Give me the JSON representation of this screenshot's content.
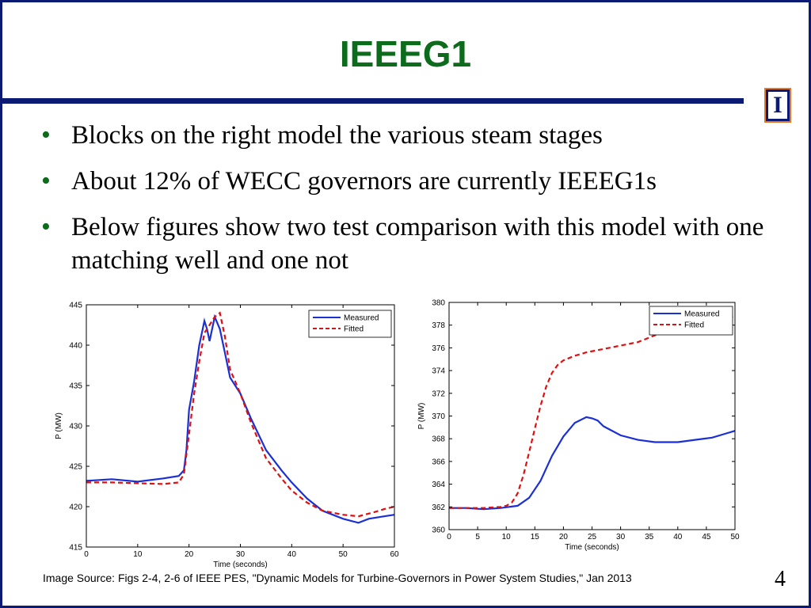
{
  "slide": {
    "title": "IEEEG1",
    "bullets": [
      "Blocks on the right model the various steam stages",
      "About 12% of WECC governors are currently IEEEG1s",
      "Below figures show two test comparison with this model with one matching well and one not"
    ],
    "bullet_glyph": "•",
    "source": "Image Source: Figs 2-4, 2-6 of  IEEE PES, \"Dynamic Models for Turbine-Governors in Power System Studies,\" Jan 2013",
    "page_number": "4",
    "logo_letter": "I"
  },
  "colors": {
    "title": "#0d6b1c",
    "rule": "#0b1a73",
    "measured": "#1a2fd6",
    "fitted": "#e01010",
    "logo_orange": "#e87722"
  },
  "chart_data": [
    {
      "type": "line",
      "title": "",
      "xlabel": "Time (seconds)",
      "ylabel": "P (MW)",
      "xlim": [
        0,
        60
      ],
      "ylim": [
        415,
        445
      ],
      "xticks": [
        0,
        10,
        20,
        30,
        40,
        50,
        60
      ],
      "yticks": [
        415,
        420,
        425,
        430,
        435,
        440,
        445
      ],
      "legend": "top-right",
      "grid": false,
      "series": [
        {
          "name": "Measured",
          "x": [
            0,
            5,
            10,
            15,
            18,
            19,
            19.5,
            20,
            21,
            22,
            23,
            23.5,
            24,
            25,
            26,
            27,
            28,
            30,
            32,
            35,
            38,
            40,
            43,
            46,
            50,
            53,
            55,
            58,
            60
          ],
          "y": [
            423.2,
            423.4,
            423.1,
            423.5,
            423.8,
            424.5,
            427,
            432,
            435.5,
            440,
            443,
            442,
            440.5,
            443.5,
            442,
            439,
            436,
            434,
            431,
            427,
            424.5,
            423,
            421,
            419.5,
            418.5,
            418,
            418.5,
            418.8,
            419
          ]
        },
        {
          "name": "Fitted",
          "x": [
            0,
            5,
            10,
            15,
            18,
            19,
            20,
            21,
            22,
            23,
            24,
            25,
            26,
            27,
            28,
            30,
            32,
            35,
            38,
            40,
            43,
            46,
            50,
            53,
            56,
            58,
            60
          ],
          "y": [
            423,
            423,
            422.9,
            422.8,
            423,
            424,
            429,
            434,
            438,
            441.5,
            442.5,
            443.5,
            444,
            441,
            437,
            434,
            430.5,
            426,
            423.5,
            422,
            420.5,
            419.5,
            419,
            418.8,
            419.3,
            419.7,
            420
          ]
        }
      ]
    },
    {
      "type": "line",
      "title": "",
      "xlabel": "Time (seconds)",
      "ylabel": "P (MW)",
      "xlim": [
        0,
        50
      ],
      "ylim": [
        360,
        380
      ],
      "xticks": [
        0,
        5,
        10,
        15,
        20,
        25,
        30,
        35,
        40,
        45,
        50
      ],
      "yticks": [
        360,
        362,
        364,
        366,
        368,
        370,
        372,
        374,
        376,
        378,
        380
      ],
      "legend": "top-right",
      "grid": false,
      "series": [
        {
          "name": "Measured",
          "x": [
            0,
            3,
            6,
            9,
            12,
            14,
            16,
            18,
            20,
            22,
            24,
            25,
            26,
            27,
            30,
            33,
            36,
            40,
            43,
            46,
            48,
            50
          ],
          "y": [
            361.9,
            361.9,
            361.8,
            361.9,
            362.1,
            362.8,
            364.3,
            366.5,
            368.2,
            369.4,
            369.9,
            369.8,
            369.6,
            369.1,
            368.3,
            367.9,
            367.7,
            367.7,
            367.9,
            368.1,
            368.4,
            368.7
          ]
        },
        {
          "name": "Fitted",
          "x": [
            0,
            3,
            6,
            9,
            10,
            11,
            12,
            13,
            14,
            15,
            16,
            17,
            18,
            19,
            20,
            22,
            24,
            26,
            28,
            30,
            33,
            35,
            37,
            40,
            43,
            46,
            48,
            50
          ],
          "y": [
            361.9,
            361.9,
            361.9,
            362.0,
            362.1,
            362.4,
            363.2,
            364.8,
            366.8,
            368.9,
            370.9,
            372.6,
            373.8,
            374.5,
            374.9,
            375.3,
            375.6,
            375.8,
            376.0,
            376.2,
            376.5,
            376.9,
            377.3,
            377.7,
            378.0,
            378.3,
            378.5,
            378.8
          ]
        }
      ]
    }
  ]
}
